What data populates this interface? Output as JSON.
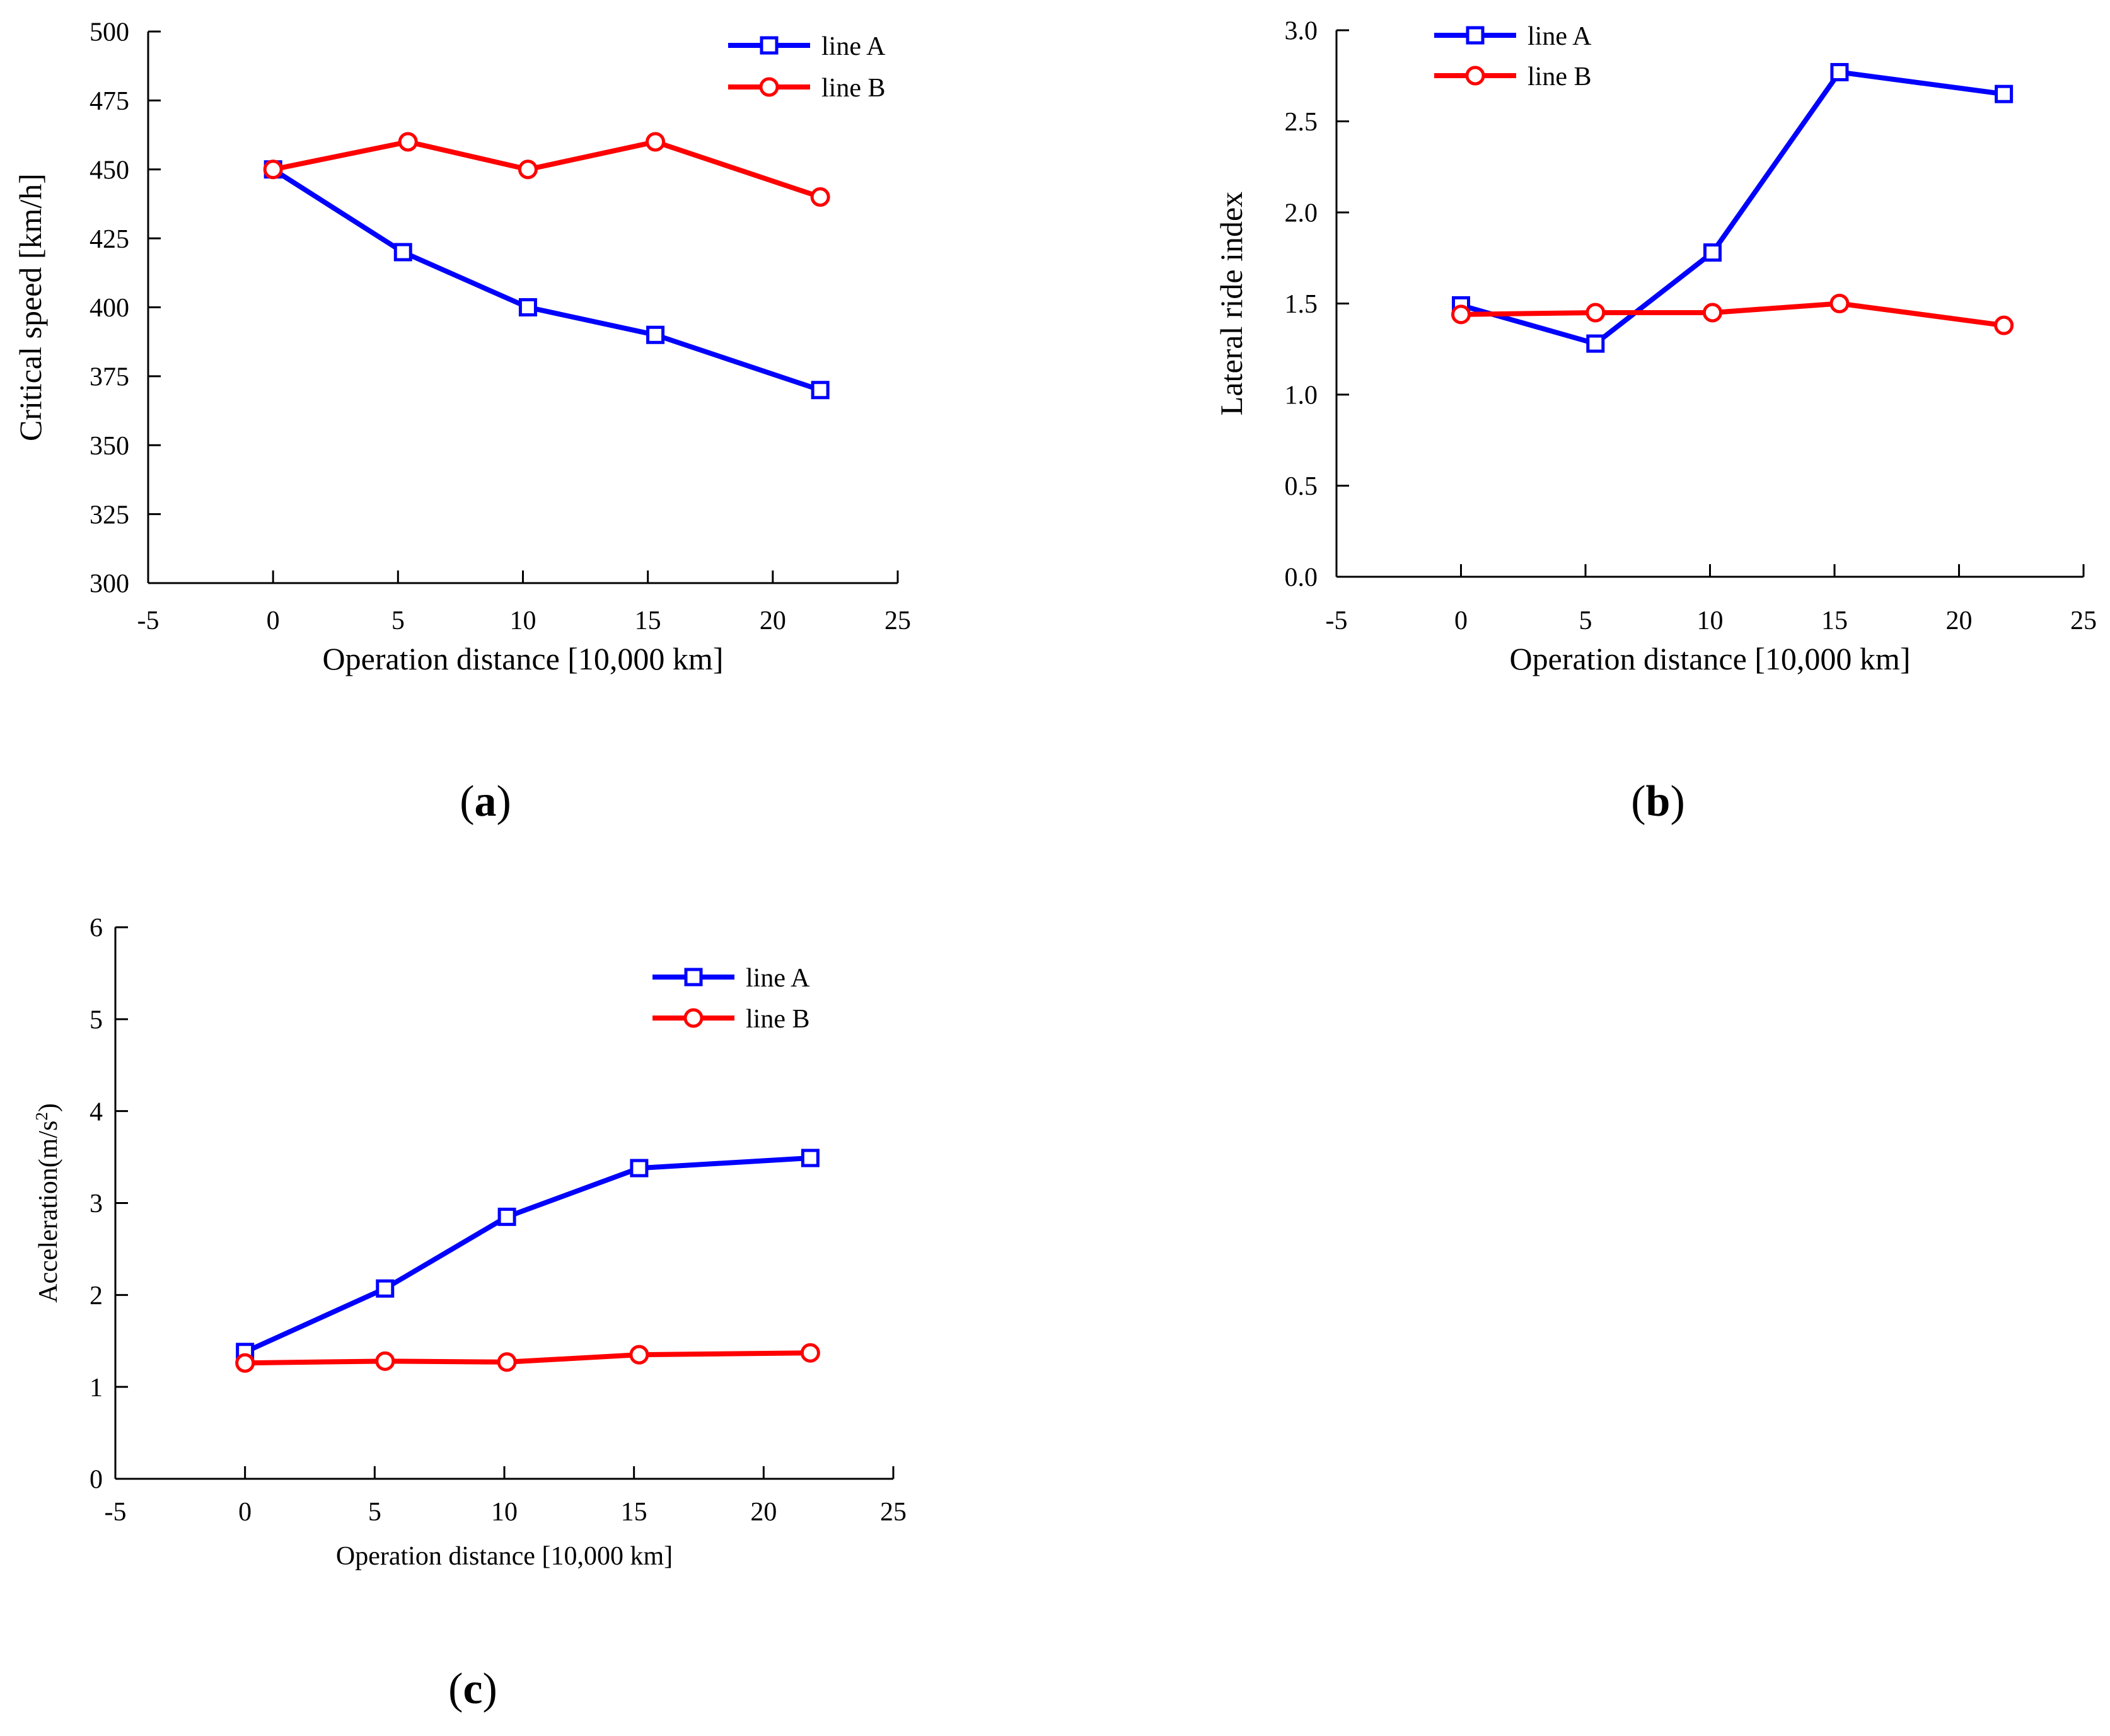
{
  "chart_data": [
    {
      "panel": "(a)",
      "type": "line",
      "xlabel": "Operation distance [10,000 km]",
      "ylabel": "Critical speed [km/h]",
      "xlim": [
        -5,
        25
      ],
      "ylim": [
        300,
        500
      ],
      "xticks": [
        -5,
        0,
        5,
        10,
        15,
        20,
        25
      ],
      "yticks": [
        300,
        325,
        350,
        375,
        400,
        425,
        450,
        475,
        500
      ],
      "legend": "top-right",
      "grid": false,
      "series": [
        {
          "name": "line A",
          "color": "#0000ff",
          "marker": "square",
          "x": [
            0,
            5.2,
            10.2,
            15.3,
            21.9
          ],
          "y": [
            450,
            420,
            400,
            390,
            370
          ]
        },
        {
          "name": "line B",
          "color": "#ff0000",
          "marker": "circle",
          "x": [
            0,
            5.4,
            10.2,
            15.3,
            21.9
          ],
          "y": [
            450,
            460,
            450,
            460,
            440
          ]
        }
      ]
    },
    {
      "panel": "(b)",
      "type": "line",
      "xlabel": "Operation distance [10,000 km]",
      "ylabel": "Lateral ride index",
      "xlim": [
        -5,
        25
      ],
      "ylim": [
        0,
        3
      ],
      "xticks": [
        -5,
        0,
        5,
        10,
        15,
        20,
        25
      ],
      "yticks": [
        0,
        0.5,
        1.0,
        1.5,
        2.0,
        2.5,
        3.0
      ],
      "ytick_labels": [
        "0.0",
        "0.5",
        "1.0",
        "1.5",
        "2.0",
        "2.5",
        "3.0"
      ],
      "legend": "top-left",
      "grid": false,
      "series": [
        {
          "name": "line A",
          "color": "#0000ff",
          "marker": "square",
          "x": [
            0,
            5.4,
            10.1,
            15.2,
            21.8
          ],
          "y": [
            1.49,
            1.28,
            1.78,
            2.77,
            2.65
          ]
        },
        {
          "name": "line B",
          "color": "#ff0000",
          "marker": "circle",
          "x": [
            0,
            5.4,
            10.1,
            15.2,
            21.8
          ],
          "y": [
            1.44,
            1.45,
            1.45,
            1.5,
            1.38
          ]
        }
      ]
    },
    {
      "panel": "(c)",
      "type": "line",
      "xlabel": "Operation distance [10,000 km]",
      "ylabel": "Acceleration(m/s",
      "ylabel_superscript": "2",
      "ylabel_suffix": ")",
      "xlim": [
        -5,
        25
      ],
      "ylim": [
        0,
        6
      ],
      "xticks": [
        -5,
        0,
        5,
        10,
        15,
        20,
        25
      ],
      "yticks": [
        0,
        1,
        2,
        3,
        4,
        5,
        6
      ],
      "legend": "top-right",
      "grid": false,
      "series": [
        {
          "name": "line A",
          "color": "#0000ff",
          "marker": "square",
          "x": [
            0,
            5.4,
            10.1,
            15.2,
            21.8
          ],
          "y": [
            1.38,
            2.07,
            2.85,
            3.38,
            3.49
          ]
        },
        {
          "name": "line B",
          "color": "#ff0000",
          "marker": "circle",
          "x": [
            0,
            5.4,
            10.1,
            15.2,
            21.8
          ],
          "y": [
            1.26,
            1.28,
            1.27,
            1.35,
            1.37
          ]
        }
      ]
    }
  ],
  "panel_labels": [
    {
      "open": "(",
      "letter": "a",
      "close": ")"
    },
    {
      "open": "(",
      "letter": "b",
      "close": ")"
    },
    {
      "open": "(",
      "letter": "c",
      "close": ")"
    }
  ]
}
